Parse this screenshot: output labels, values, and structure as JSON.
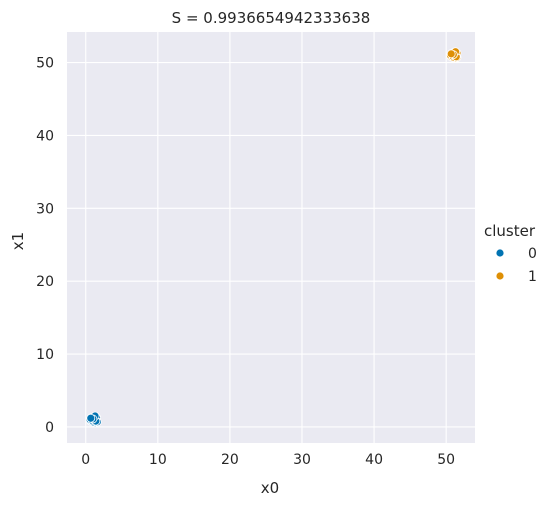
{
  "chart_data": {
    "type": "scatter",
    "title": "S = 0.9936654942333638",
    "xlabel": "x0",
    "ylabel": "x1",
    "xlim": [
      -2.6,
      54.0
    ],
    "ylim": [
      -2.2,
      54.2
    ],
    "xticks": [
      0,
      10,
      20,
      30,
      40,
      50
    ],
    "yticks": [
      0,
      10,
      20,
      30,
      40,
      50
    ],
    "grid": true,
    "background": "#EAEAF2",
    "legend": {
      "title": "cluster",
      "placement": "right"
    },
    "series": [
      {
        "name": "0",
        "color": "#0173B2",
        "points": [
          [
            1.0,
            1.0
          ],
          [
            0.9,
            1.2
          ],
          [
            1.2,
            0.9
          ],
          [
            1.4,
            1.1
          ],
          [
            0.7,
            0.8
          ],
          [
            1.1,
            1.4
          ],
          [
            0.8,
            1.1
          ],
          [
            1.3,
            0.6
          ],
          [
            1.5,
            1.3
          ],
          [
            0.6,
            1.0
          ],
          [
            1.0,
            0.7
          ],
          [
            1.2,
            1.2
          ],
          [
            0.9,
            0.9
          ],
          [
            1.6,
            0.7
          ],
          [
            1.1,
            1.0
          ],
          [
            0.8,
            1.3
          ],
          [
            1.4,
            0.8
          ],
          [
            1.3,
            1.5
          ],
          [
            1.0,
            1.1
          ],
          [
            0.7,
            1.2
          ]
        ]
      },
      {
        "name": "1",
        "color": "#DE8F05",
        "points": [
          [
            51.0,
            51.0
          ],
          [
            50.8,
            51.2
          ],
          [
            51.2,
            50.9
          ],
          [
            51.4,
            51.1
          ],
          [
            50.7,
            50.8
          ],
          [
            51.1,
            51.4
          ],
          [
            50.9,
            51.1
          ],
          [
            51.3,
            50.6
          ],
          [
            51.5,
            51.3
          ],
          [
            50.6,
            51.0
          ],
          [
            51.0,
            50.7
          ],
          [
            51.2,
            51.2
          ],
          [
            50.9,
            50.9
          ],
          [
            51.5,
            50.7
          ],
          [
            51.1,
            51.0
          ],
          [
            50.8,
            51.3
          ],
          [
            51.4,
            50.8
          ],
          [
            51.3,
            51.5
          ],
          [
            51.0,
            51.1
          ],
          [
            50.7,
            51.2
          ]
        ]
      }
    ]
  }
}
